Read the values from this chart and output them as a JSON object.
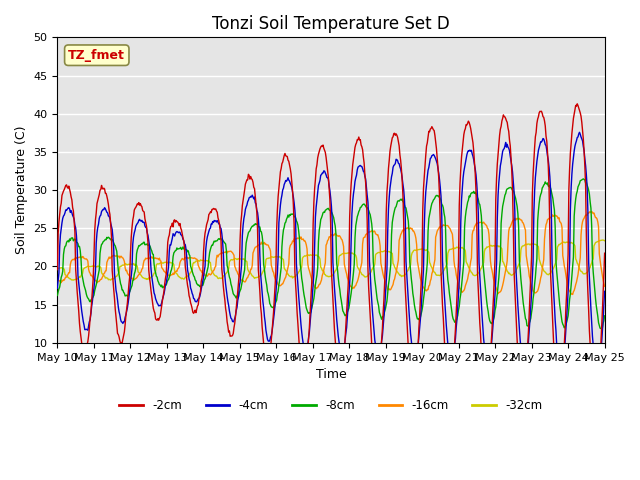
{
  "title": "Tonzi Soil Temperature Set D",
  "xlabel": "Time",
  "ylabel": "Soil Temperature (C)",
  "ylim": [
    10,
    50
  ],
  "yticks": [
    10,
    15,
    20,
    25,
    30,
    35,
    40,
    45,
    50
  ],
  "x_tick_labels": [
    "May 10",
    "May 11",
    "May 12",
    "May 13",
    "May 14",
    "May 15",
    "May 16",
    "May 17",
    "May 18",
    "May 19",
    "May 20",
    "May 21",
    "May 22",
    "May 23",
    "May 24",
    "May 25"
  ],
  "legend_labels": [
    "-2cm",
    "-4cm",
    "-8cm",
    "-16cm",
    "-32cm"
  ],
  "line_colors": [
    "#cc0000",
    "#0000cc",
    "#00aa00",
    "#ff8800",
    "#cccc00"
  ],
  "annotation_text": "TZ_fmet",
  "annotation_color": "#cc0000",
  "annotation_bg": "#ffffcc",
  "background_color": "#e5e5e5",
  "grid_color": "#ffffff",
  "title_fontsize": 12,
  "label_fontsize": 9,
  "tick_fontsize": 8
}
